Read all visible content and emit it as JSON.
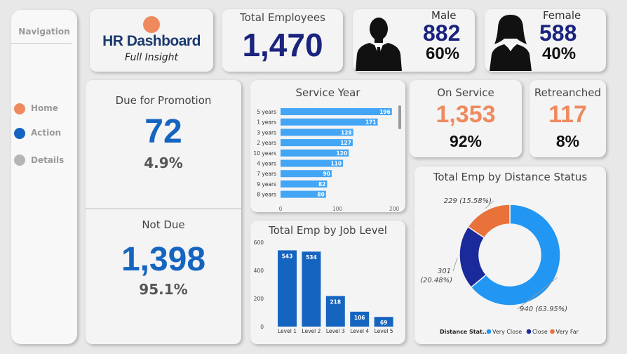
{
  "nav": {
    "title": "Navigation",
    "items": [
      {
        "label": "Home",
        "color": "#ee8a5e"
      },
      {
        "label": "Action",
        "color": "#1565c0"
      },
      {
        "label": "Details",
        "color": "#b5b5b5"
      }
    ]
  },
  "logo": {
    "title": "HR Dashboard",
    "subtitle": "Full Insight"
  },
  "kpis": {
    "total_employees": {
      "label": "Total Employees",
      "value": "1,470"
    },
    "male": {
      "label": "Male",
      "value": "882",
      "pct": "60%"
    },
    "female": {
      "label": "Female",
      "value": "588",
      "pct": "40%"
    },
    "on_service": {
      "label": "On Service",
      "value": "1,353",
      "pct": "92%"
    },
    "retrenched": {
      "label": "Retreanched",
      "value": "117",
      "pct": "8%"
    },
    "due_promotion": {
      "label": "Due for Promotion",
      "value": "72",
      "pct": "4.9%"
    },
    "not_due": {
      "label": "Not Due",
      "value": "1,398",
      "pct": "95.1%"
    }
  },
  "colors": {
    "accent_orange": "#ee8a5e",
    "navy": "#1a237e",
    "blue": "#1565c0",
    "bar_blue": "#42a5f5"
  },
  "chart_data": [
    {
      "type": "bar",
      "orientation": "horizontal",
      "title": "Service Year",
      "categories": [
        "5 years",
        "1 years",
        "3 years",
        "2 years",
        "10 years",
        "4 years",
        "7 years",
        "9 years",
        "8 years"
      ],
      "values": [
        196,
        171,
        128,
        127,
        120,
        110,
        90,
        82,
        80
      ],
      "xlim": [
        0,
        200
      ],
      "xticks": [
        0,
        100,
        200
      ],
      "color": "#42a5f5"
    },
    {
      "type": "bar",
      "title": "Total Emp by Job Level",
      "categories": [
        "Level 1",
        "Level 2",
        "Level 3",
        "Level 4",
        "Level 5"
      ],
      "values": [
        543,
        534,
        218,
        106,
        69
      ],
      "ylim": [
        0,
        600
      ],
      "yticks": [
        0,
        200,
        400,
        600
      ],
      "color": "#1565c0"
    },
    {
      "type": "pie",
      "donut": true,
      "title": "Total Emp by Distance Status",
      "legend_title": "Distance Stat...",
      "slices": [
        {
          "name": "Very Close",
          "value": 940,
          "label": "940 (63.95%)",
          "color": "#2196f3"
        },
        {
          "name": "Close",
          "value": 301,
          "label": "301 (20.48%)",
          "color": "#1a2a9a"
        },
        {
          "name": "Very Far",
          "value": 229,
          "label": "229 (15.58%)",
          "color": "#e8723a"
        }
      ]
    }
  ]
}
